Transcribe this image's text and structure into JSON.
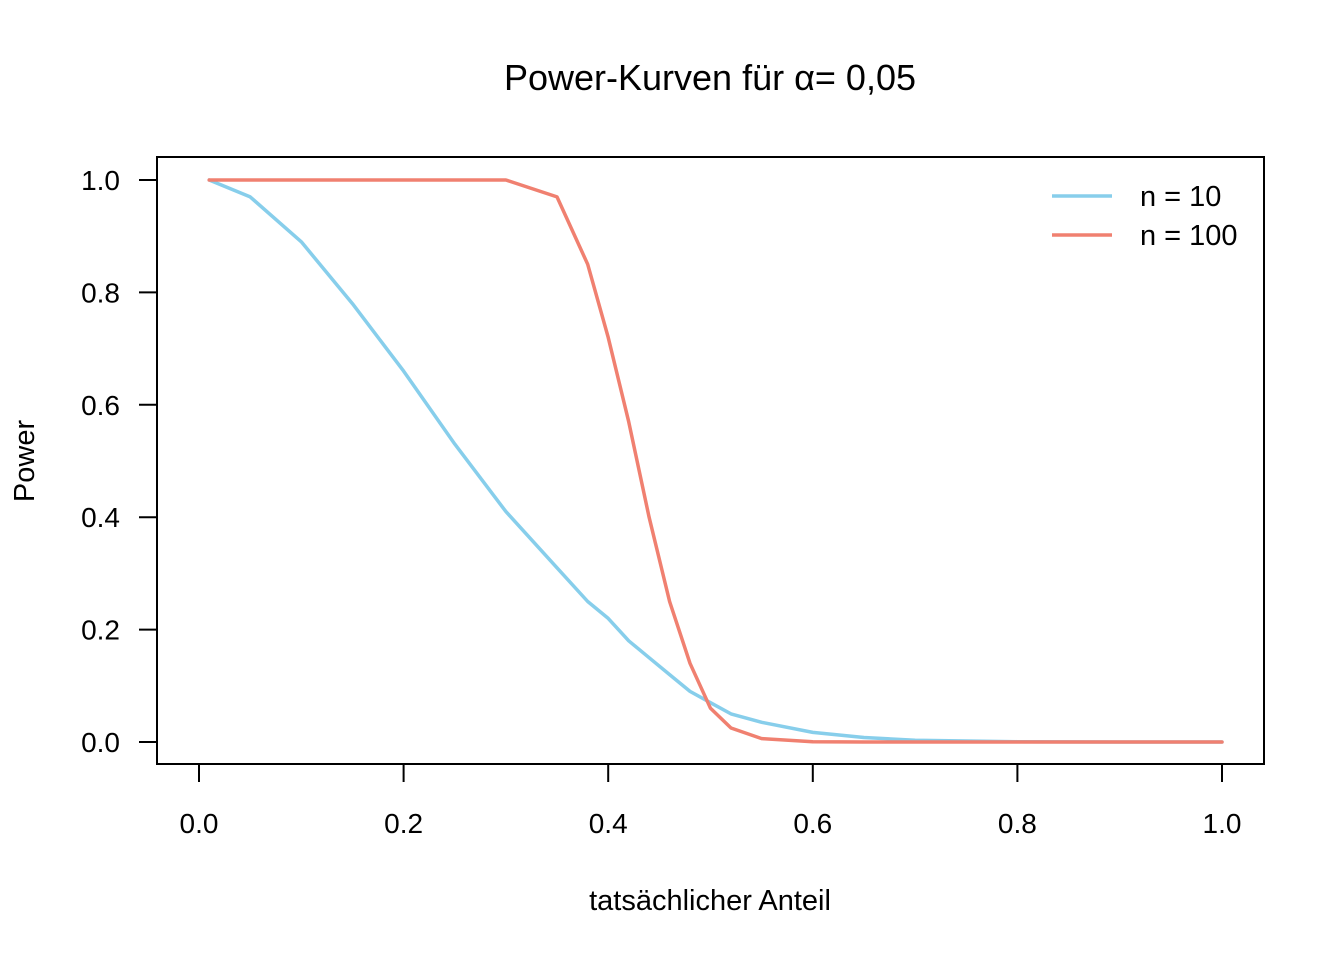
{
  "chart_data": {
    "type": "line",
    "title": "Power-Kurven für α= 0,05",
    "xlabel": "tatsächlicher Anteil",
    "ylabel": "Power",
    "xlim": [
      0,
      1
    ],
    "ylim": [
      0,
      1
    ],
    "xticks": [
      "0.0",
      "0.2",
      "0.4",
      "0.6",
      "0.8",
      "1.0"
    ],
    "yticks": [
      "0.0",
      "0.2",
      "0.4",
      "0.6",
      "0.8",
      "1.0"
    ],
    "grid": false,
    "legend_position": "top-right",
    "x": [
      0.01,
      0.05,
      0.1,
      0.15,
      0.2,
      0.25,
      0.3,
      0.35,
      0.38,
      0.4,
      0.42,
      0.44,
      0.46,
      0.48,
      0.5,
      0.52,
      0.55,
      0.6,
      0.65,
      0.7,
      0.8,
      0.9,
      1.0
    ],
    "series": [
      {
        "name": "n = 10",
        "color": "#87CEEB",
        "values": [
          1.0,
          0.97,
          0.89,
          0.78,
          0.66,
          0.53,
          0.41,
          0.31,
          0.25,
          0.22,
          0.18,
          0.15,
          0.12,
          0.09,
          0.07,
          0.05,
          0.035,
          0.017,
          0.008,
          0.003,
          0.0005,
          0.0,
          0.0
        ]
      },
      {
        "name": "n = 100",
        "color": "#F08070",
        "values": [
          1.0,
          1.0,
          1.0,
          1.0,
          1.0,
          1.0,
          1.0,
          0.97,
          0.85,
          0.72,
          0.57,
          0.4,
          0.25,
          0.14,
          0.06,
          0.025,
          0.006,
          0.0005,
          0.0,
          0.0,
          0.0,
          0.0,
          0.0
        ]
      }
    ]
  }
}
